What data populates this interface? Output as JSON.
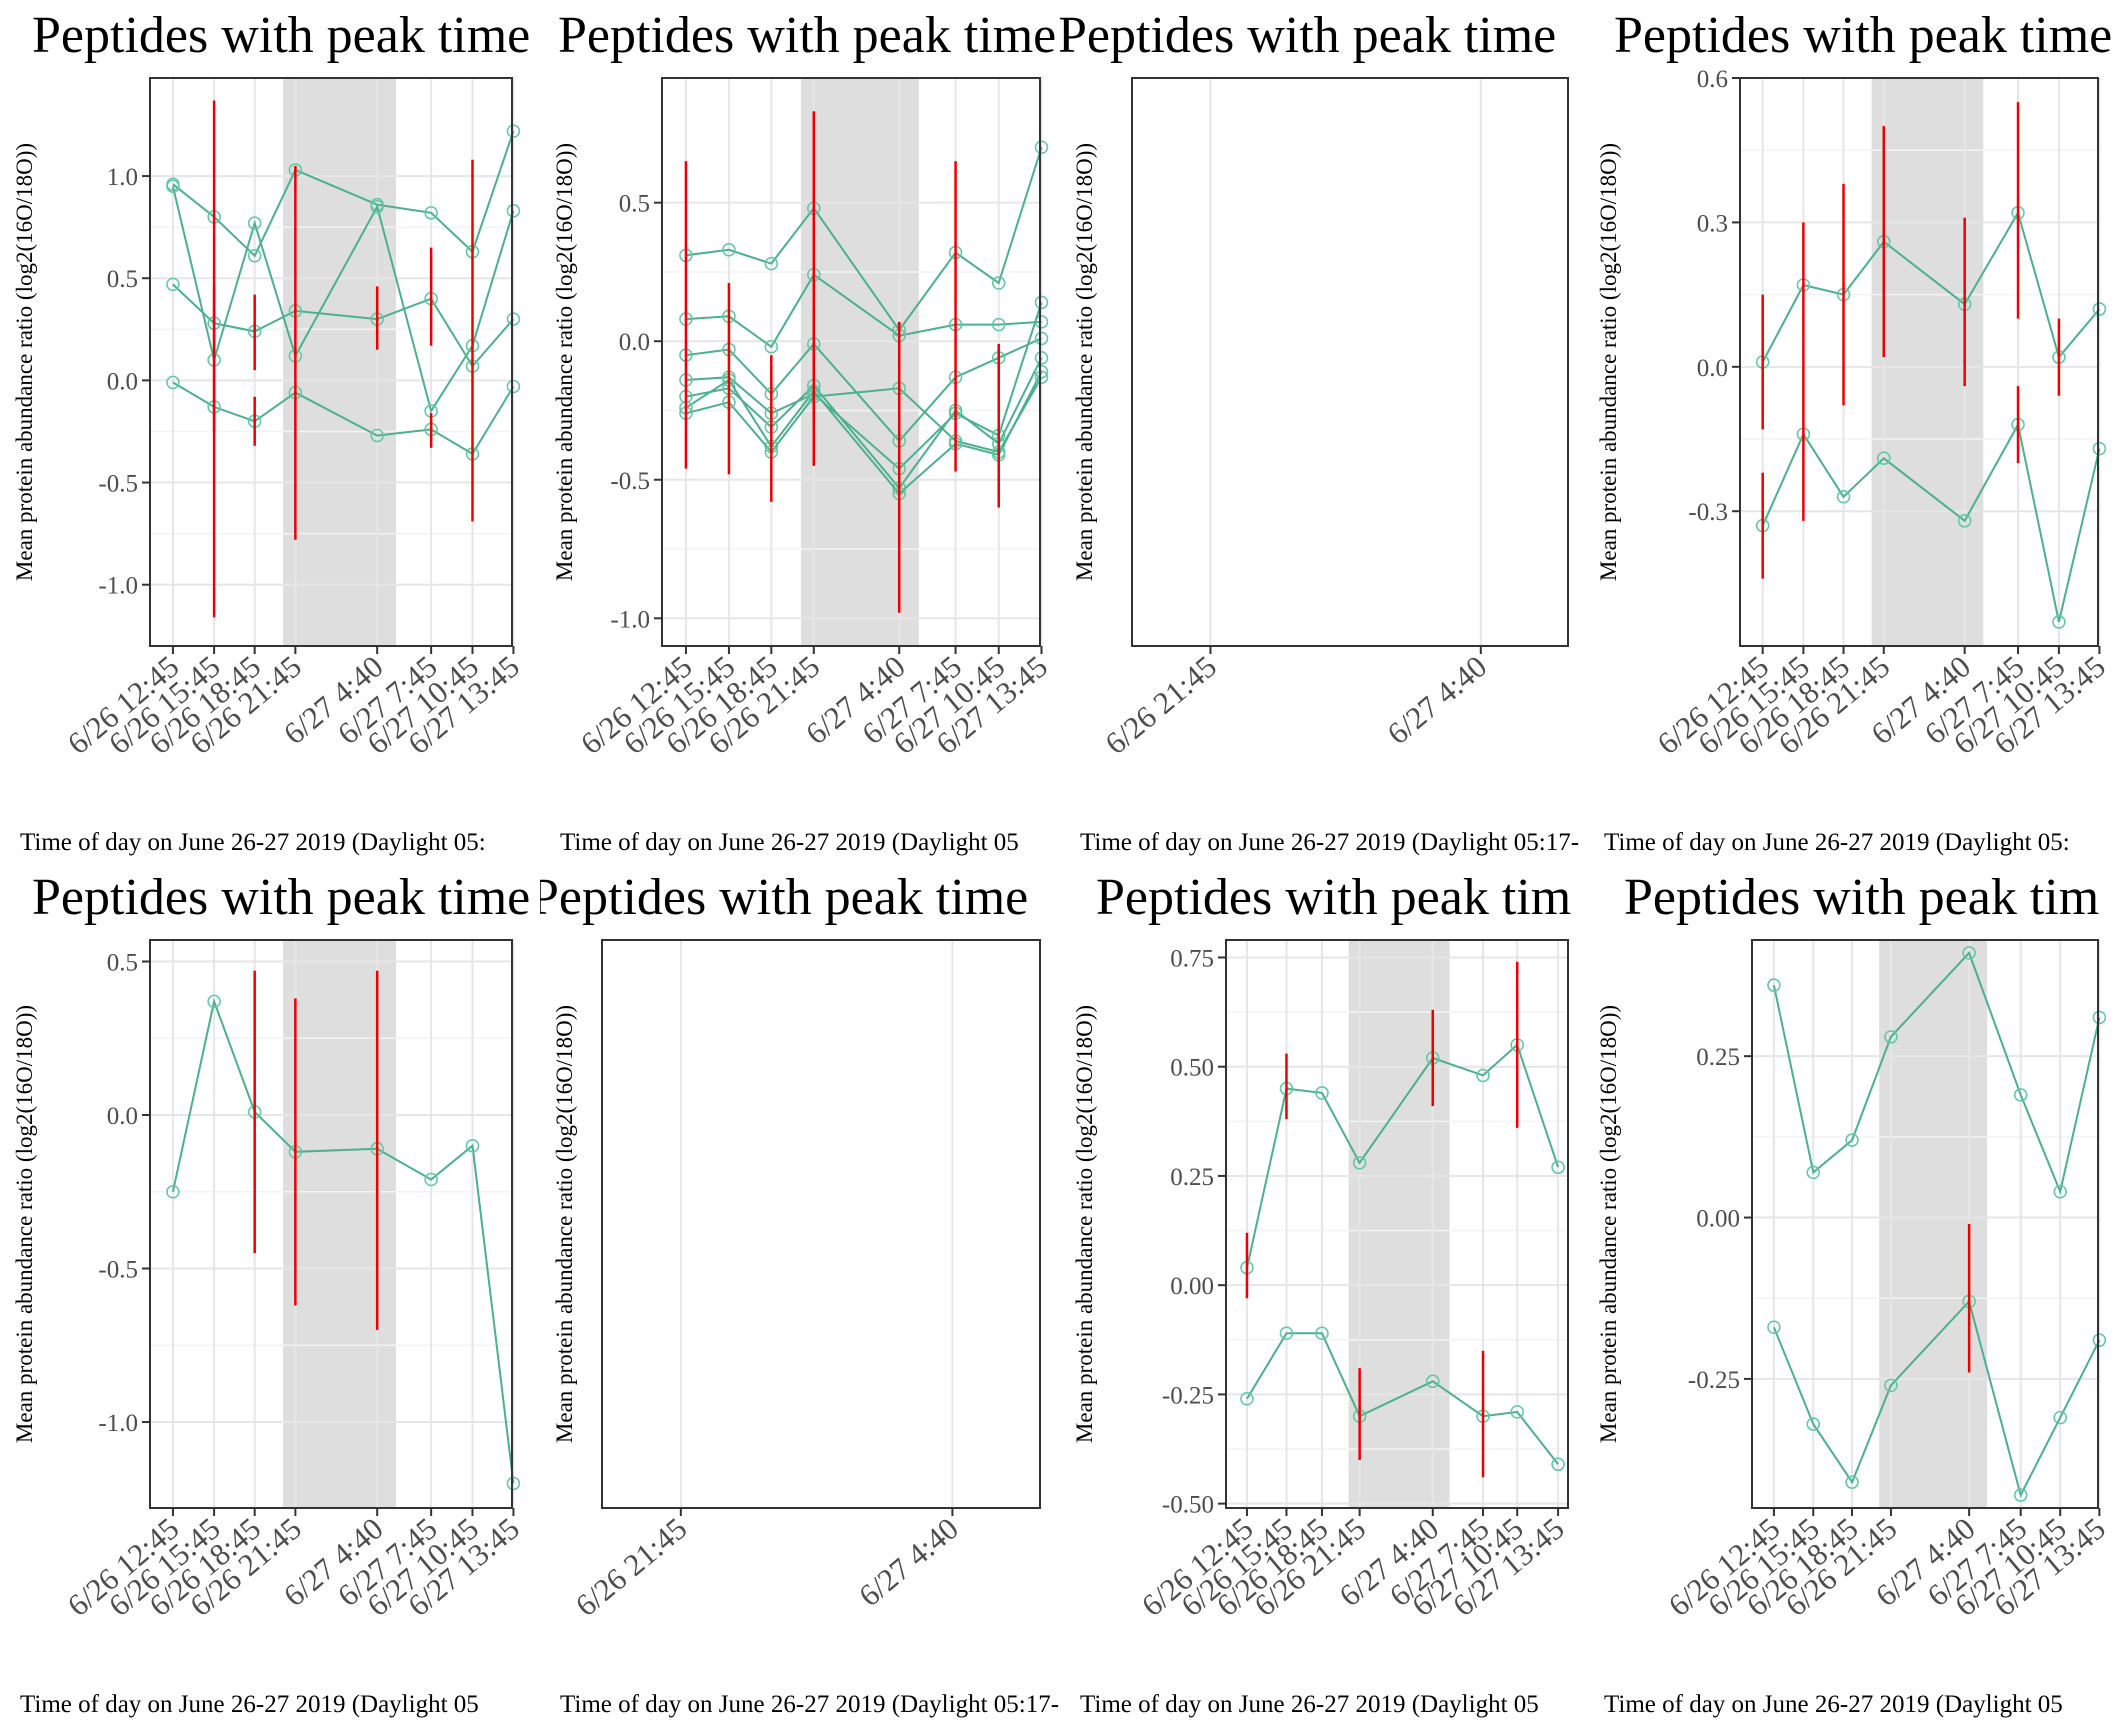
{
  "colors": {
    "line": "#4bb08f",
    "point": "#5fc7a3",
    "error": "#ee0000",
    "shade": "#dedede",
    "grid_major": "#e6e6e6",
    "grid_minor": "#f3f3f3",
    "frame": "#333333",
    "axis_text": "#4d4d4d"
  },
  "shared": {
    "ylabel": "Mean protein abundance ratio (log2(16O/18O))",
    "tick_labels": [
      "6/26  12:45",
      "6/26  15:45",
      "6/26  18:45",
      "6/26  21:45",
      "6/27  4:40",
      "6/27  7:45",
      "6/27  10:45",
      "6/27  13:45"
    ],
    "empty_tick_labels": [
      "6/26  21:45",
      "6/27  4:40"
    ]
  },
  "chart_data": [
    {
      "type": "line",
      "title": "Peptides with peak time",
      "xlabel": "Time of day on June 26-27 2019 (Daylight 05:",
      "ylim": [
        -1.3,
        1.48
      ],
      "yticks": [
        1.0,
        0.5,
        0.0,
        -0.5,
        -1.0
      ],
      "ytick_labels": [
        "1.0",
        "0.5",
        "0.0",
        "-0.5",
        "-1.0"
      ],
      "shaded": true,
      "series": [
        {
          "values": [
            0.96,
            0.8,
            0.61,
            1.03,
            0.86,
            0.82,
            0.63,
            1.22
          ]
        },
        {
          "values": [
            0.95,
            0.1,
            0.77,
            0.12,
            0.85,
            -0.15,
            0.17,
            0.83
          ]
        },
        {
          "values": [
            0.47,
            0.28,
            0.24,
            0.34,
            0.3,
            0.4,
            0.07,
            0.3
          ]
        },
        {
          "values": [
            -0.01,
            -0.13,
            -0.2,
            -0.06,
            -0.27,
            -0.24,
            -0.36,
            -0.03
          ]
        }
      ],
      "error_bars": [
        {
          "x": 1,
          "low": -1.16,
          "high": 1.37
        },
        {
          "x": 1,
          "low": -0.25,
          "high": 0.46
        },
        {
          "x": 2,
          "low": 0.05,
          "high": 0.42
        },
        {
          "x": 2,
          "low": -0.32,
          "high": -0.08
        },
        {
          "x": 3,
          "low": -0.78,
          "high": 1.05
        },
        {
          "x": 4,
          "low": 0.15,
          "high": 0.46
        },
        {
          "x": 5,
          "low": 0.17,
          "high": 0.65
        },
        {
          "x": 5,
          "low": -0.33,
          "high": -0.16
        },
        {
          "x": 6,
          "low": -0.69,
          "high": 1.08
        }
      ]
    },
    {
      "type": "line",
      "title": "Peptides with peak time",
      "xlabel": "Time of day on June 26-27 2019 (Daylight 05",
      "ylim": [
        -1.1,
        0.95
      ],
      "yticks": [
        0.5,
        0.0,
        -0.5,
        -1.0
      ],
      "ytick_labels": [
        "0.5",
        "0.0",
        "-0.5",
        "-1.0"
      ],
      "shaded": true,
      "series": [
        {
          "values": [
            0.31,
            0.33,
            0.28,
            0.48,
            0.04,
            0.32,
            0.21,
            0.7
          ]
        },
        {
          "values": [
            0.08,
            0.09,
            -0.02,
            0.24,
            0.02,
            0.06,
            0.06,
            0.07
          ]
        },
        {
          "values": [
            -0.05,
            -0.03,
            -0.19,
            -0.01,
            -0.36,
            -0.13,
            -0.06,
            0.01
          ]
        },
        {
          "values": [
            -0.14,
            -0.13,
            -0.26,
            -0.19,
            -0.46,
            -0.26,
            -0.34,
            0.14
          ]
        },
        {
          "values": [
            -0.2,
            -0.17,
            -0.31,
            -0.16,
            -0.53,
            -0.25,
            -0.37,
            -0.06
          ]
        },
        {
          "values": [
            -0.24,
            -0.14,
            -0.38,
            -0.18,
            -0.55,
            -0.37,
            -0.41,
            -0.11
          ]
        },
        {
          "values": [
            -0.26,
            -0.22,
            -0.4,
            -0.2,
            -0.17,
            -0.36,
            -0.4,
            -0.13
          ]
        }
      ],
      "error_bars": [
        {
          "x": 0,
          "low": -0.46,
          "high": 0.65
        },
        {
          "x": 1,
          "low": -0.48,
          "high": 0.21
        },
        {
          "x": 2,
          "low": -0.58,
          "high": -0.05
        },
        {
          "x": 3,
          "low": -0.45,
          "high": 0.83
        },
        {
          "x": 3,
          "low": -0.3,
          "high": 0.12
        },
        {
          "x": 4,
          "low": -0.98,
          "high": 0.07
        },
        {
          "x": 5,
          "low": -0.47,
          "high": 0.65
        },
        {
          "x": 6,
          "low": -0.6,
          "high": -0.01
        }
      ]
    },
    {
      "type": "line",
      "title": "Peptides with peak time",
      "xlabel": "Time of day on June 26-27 2019 (Daylight 05:17-",
      "empty": true,
      "series": [],
      "error_bars": []
    },
    {
      "type": "line",
      "title": "Peptides with peak time",
      "xlabel": "Time of day on June 26-27 2019 (Daylight 05:",
      "ylim": [
        -0.58,
        0.6
      ],
      "yticks": [
        0.6,
        0.3,
        0.0,
        -0.3
      ],
      "ytick_labels": [
        "0.6",
        "0.3",
        "0.0",
        "-0.3"
      ],
      "shaded": true,
      "series": [
        {
          "values": [
            0.01,
            0.17,
            0.15,
            0.26,
            0.13,
            0.32,
            0.02,
            0.12
          ]
        },
        {
          "values": [
            -0.33,
            -0.14,
            -0.27,
            -0.19,
            -0.32,
            -0.12,
            -0.53,
            -0.17
          ]
        }
      ],
      "error_bars": [
        {
          "x": 0,
          "low": -0.13,
          "high": 0.15
        },
        {
          "x": 0,
          "low": -0.44,
          "high": -0.22
        },
        {
          "x": 1,
          "low": 0.05,
          "high": 0.3
        },
        {
          "x": 1,
          "low": -0.32,
          "high": 0.05
        },
        {
          "x": 2,
          "low": -0.08,
          "high": 0.38
        },
        {
          "x": 3,
          "low": 0.02,
          "high": 0.5
        },
        {
          "x": 4,
          "low": -0.04,
          "high": 0.31
        },
        {
          "x": 5,
          "low": 0.1,
          "high": 0.55
        },
        {
          "x": 5,
          "low": -0.2,
          "high": -0.04
        },
        {
          "x": 6,
          "low": -0.06,
          "high": 0.1
        }
      ]
    },
    {
      "type": "line",
      "title": "Peptides with peak time",
      "xlabel": "Time of day on June 26-27 2019 (Daylight 05",
      "ylim": [
        -1.28,
        0.57
      ],
      "yticks": [
        0.5,
        0.0,
        -0.5,
        -1.0
      ],
      "ytick_labels": [
        "0.5",
        "0.0",
        "-0.5",
        "-1.0"
      ],
      "shaded": true,
      "series": [
        {
          "values": [
            -0.25,
            0.37,
            0.01,
            -0.12,
            -0.11,
            -0.21,
            -0.1,
            -1.2
          ]
        }
      ],
      "error_bars": [
        {
          "x": 2,
          "low": -0.45,
          "high": 0.47
        },
        {
          "x": 3,
          "low": -0.62,
          "high": 0.38
        },
        {
          "x": 4,
          "low": -0.7,
          "high": 0.47
        }
      ]
    },
    {
      "type": "line",
      "title": "Peptides with peak time",
      "xlabel": "Time of day on June 26-27 2019 (Daylight 05:17-",
      "empty": true,
      "series": [],
      "error_bars": []
    },
    {
      "type": "line",
      "title": "Peptides with peak tim",
      "xlabel": "Time of day on June 26-27 2019 (Daylight 05",
      "ylim": [
        -0.51,
        0.79
      ],
      "yticks": [
        0.75,
        0.5,
        0.25,
        0.0,
        -0.25,
        -0.5
      ],
      "ytick_labels": [
        "0.75",
        "0.50",
        "0.25",
        "0.00",
        "-0.25",
        "-0.50"
      ],
      "shaded": true,
      "series": [
        {
          "values": [
            0.04,
            0.45,
            0.44,
            0.28,
            0.52,
            0.48,
            0.55,
            0.27
          ]
        },
        {
          "values": [
            -0.26,
            -0.11,
            -0.11,
            -0.3,
            -0.22,
            -0.3,
            -0.29,
            -0.41
          ]
        }
      ],
      "error_bars": [
        {
          "x": 0,
          "low": -0.03,
          "high": 0.12
        },
        {
          "x": 1,
          "low": 0.38,
          "high": 0.53
        },
        {
          "x": 3,
          "low": -0.4,
          "high": -0.19
        },
        {
          "x": 4,
          "low": 0.41,
          "high": 0.63
        },
        {
          "x": 5,
          "low": -0.44,
          "high": -0.15
        },
        {
          "x": 6,
          "low": 0.36,
          "high": 0.74
        }
      ]
    },
    {
      "type": "line",
      "title": "Peptides with peak tim",
      "xlabel": "Time of day on June 26-27 2019 (Daylight 05",
      "ylim": [
        -0.45,
        0.43
      ],
      "yticks": [
        0.25,
        0.0,
        -0.25
      ],
      "ytick_labels": [
        "0.25",
        "0.00",
        "-0.25"
      ],
      "shaded": true,
      "series": [
        {
          "values": [
            0.36,
            0.07,
            0.12,
            0.28,
            0.41,
            0.19,
            0.04,
            0.31
          ]
        },
        {
          "values": [
            -0.17,
            -0.32,
            -0.41,
            -0.26,
            -0.13,
            -0.43,
            -0.31,
            -0.19
          ]
        }
      ],
      "error_bars": [
        {
          "x": 4,
          "low": -0.24,
          "high": -0.01
        }
      ]
    }
  ]
}
